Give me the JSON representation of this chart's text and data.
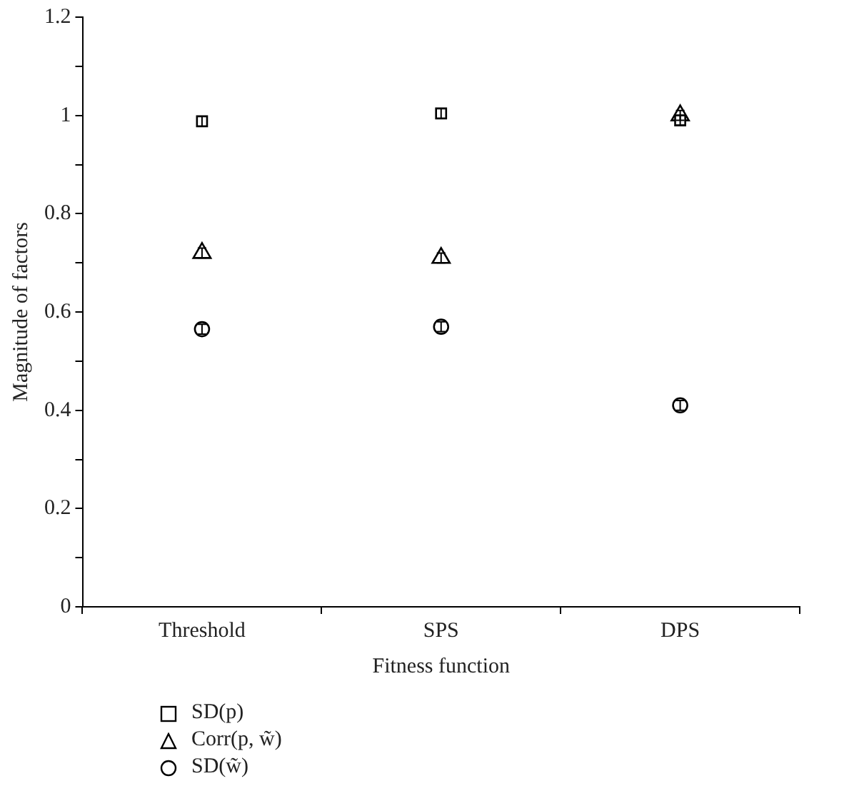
{
  "chart_data": {
    "type": "scatter",
    "xlabel": "Fitness function",
    "ylabel": "Magnitude of factors",
    "categories": [
      "Threshold",
      "SPS",
      "DPS"
    ],
    "series": [
      {
        "name": "SD(p)",
        "color": "#000000",
        "marker": "square",
        "values": [
          0.988,
          1.004,
          0.99
        ],
        "errors": [
          0.01,
          0.01,
          0.01
        ]
      },
      {
        "name": "Corr(p, w̃)",
        "color": "#000000",
        "marker": "triangle",
        "values": [
          0.72,
          0.71,
          1.0
        ],
        "errors": [
          0.01,
          0.01,
          0.01
        ]
      },
      {
        "name": "SD(w̃)",
        "color": "#000000",
        "marker": "circle",
        "values": [
          0.565,
          0.57,
          0.41
        ],
        "errors": [
          0.01,
          0.01,
          0.01
        ]
      }
    ],
    "ylim": [
      0,
      1.2
    ],
    "yticks": [
      0,
      {
        "value": 0.1,
        "label": null
      },
      0.2,
      {
        "value": 0.3,
        "label": null
      },
      0.4,
      {
        "value": 0.5,
        "label": null
      },
      0.6,
      {
        "value": 0.7,
        "label": null
      },
      0.8,
      {
        "value": 0.9,
        "label": null
      },
      1,
      {
        "value": 1.1,
        "label": null
      },
      1.2
    ],
    "grid": false,
    "legend": "bottom left"
  }
}
